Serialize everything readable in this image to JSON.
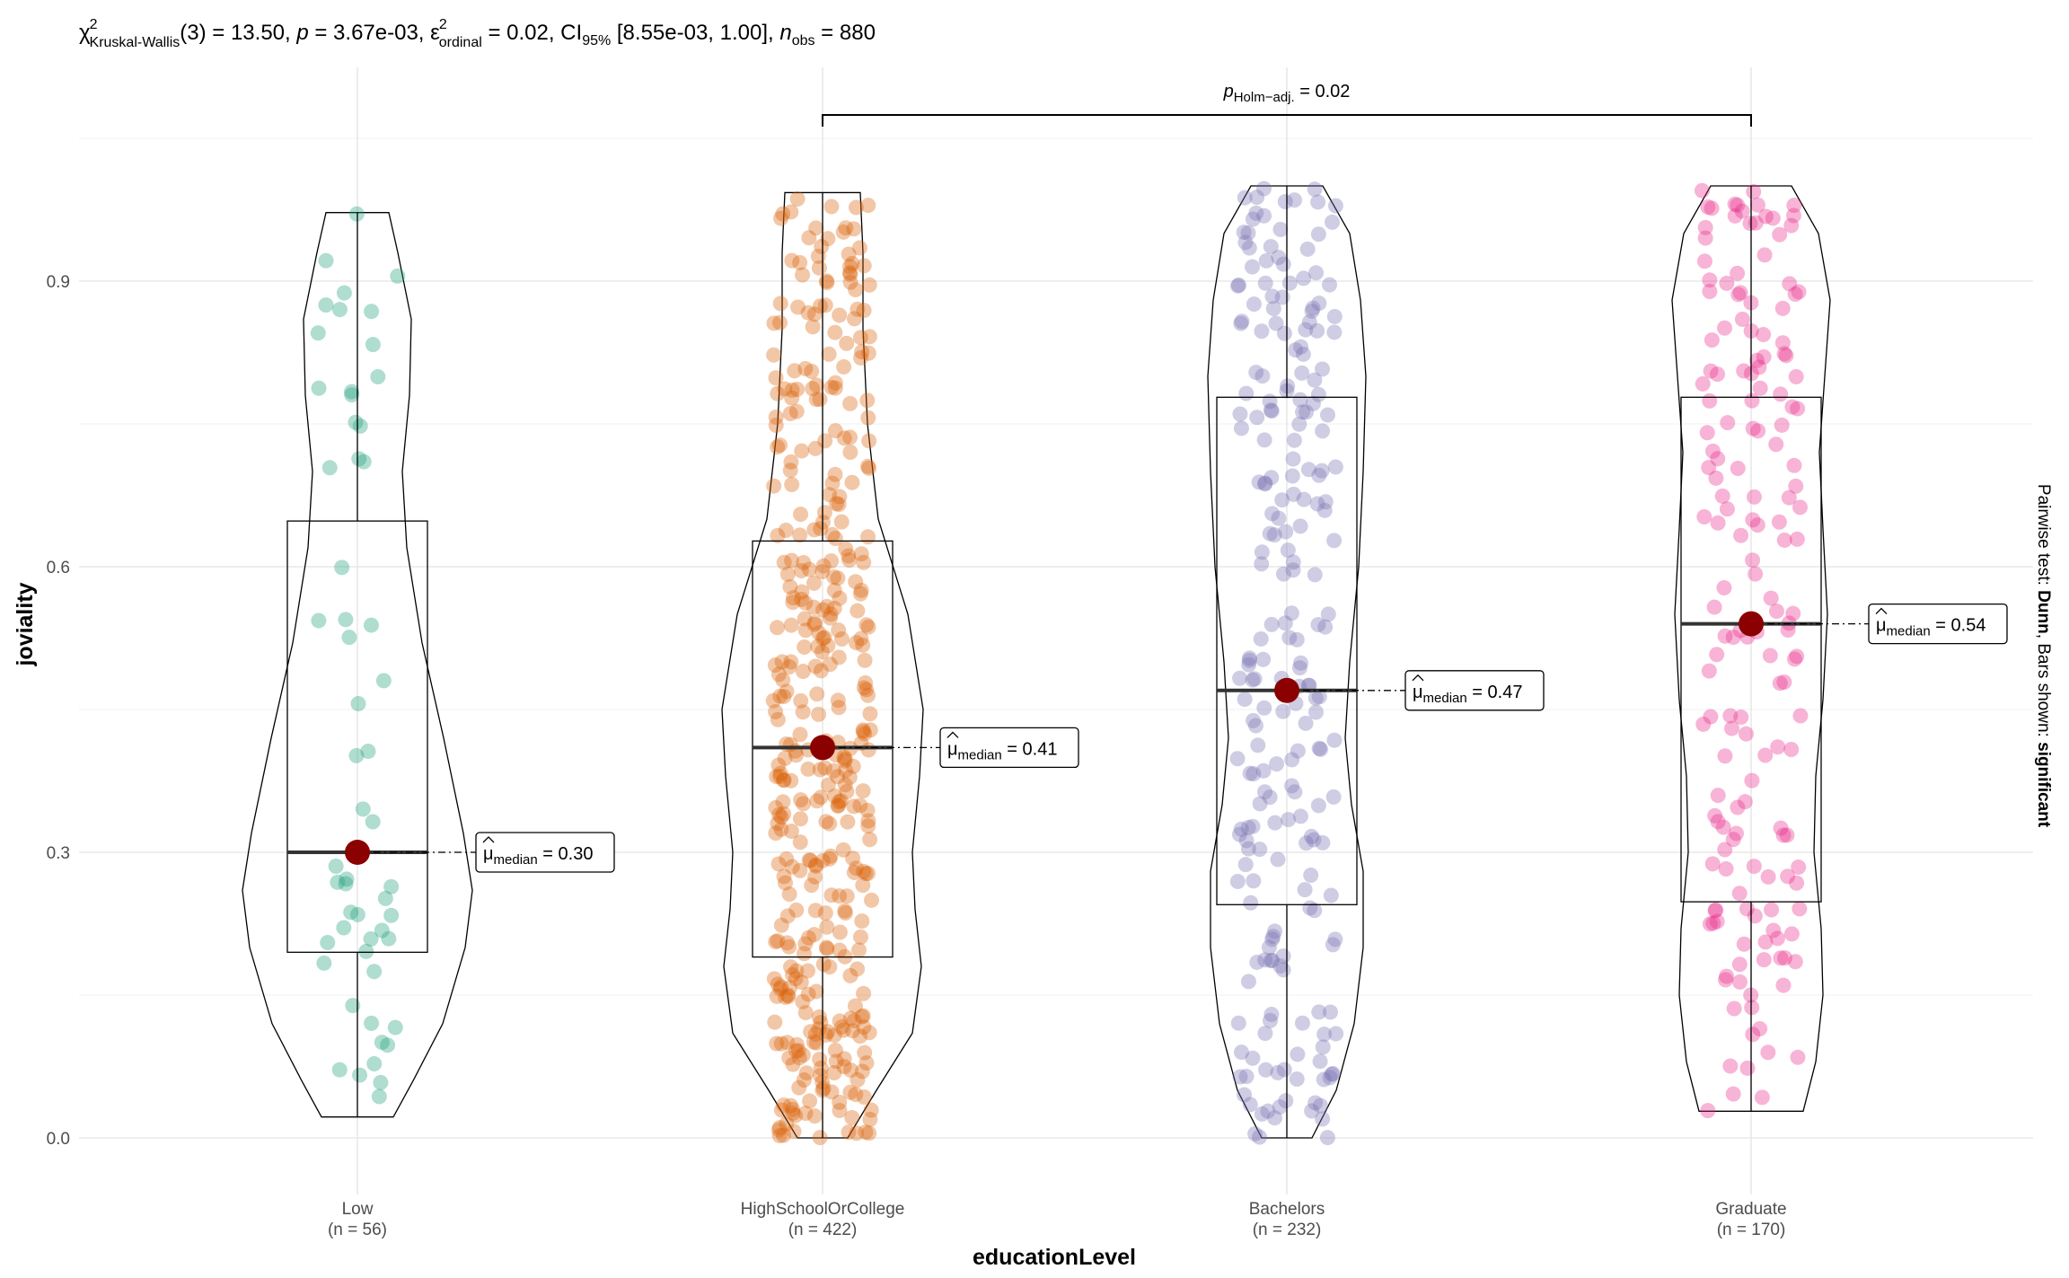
{
  "chart_data": {
    "type": "violin-box-scatter",
    "subtitle": {
      "chi_label": "χ",
      "chi_sup": "2",
      "chi_sub": "Kruskal-Wallis",
      "main": "(3) = 13.50, ",
      "p_label": "p",
      "p_value": " = 3.67e-03, ",
      "eps_label": "ε",
      "eps_sup": "2",
      "eps_sub": "ordinal",
      "eps_value": " = 0.02, CI",
      "ci_sub": "95%",
      "ci_value": " [8.55e-03, 1.00], ",
      "n_label": "n",
      "n_sub": "obs",
      "n_value": " = 880"
    },
    "xlabel": "educationLevel",
    "ylabel": "joviality",
    "ylim": [
      -0.05,
      1.05
    ],
    "yticks": [
      "0.0",
      "0.3",
      "0.6",
      "0.9"
    ],
    "ytick_values": [
      0.0,
      0.3,
      0.6,
      0.9
    ],
    "caption_prefix": "Pairwise test: ",
    "caption_bold1": "Dunn",
    "caption_mid": ", Bars shown: ",
    "caption_bold2": "significant",
    "median_label": "μ",
    "median_sub": "median",
    "pairwise": {
      "from": "HighSchoolOrCollege",
      "to": "Graduate",
      "label": "p",
      "sub": "Holm−adj.",
      "value": " = 0.02"
    },
    "groups": [
      {
        "name": "Low",
        "n_label": "(n = 56)",
        "n": 56,
        "color": "#1B9E77",
        "median": 0.3,
        "median_text": " = 0.30",
        "q1": 0.195,
        "q3": 0.648,
        "min": 0.022,
        "max": 0.972
      },
      {
        "name": "HighSchoolOrCollege",
        "n_label": "(n = 422)",
        "n": 422,
        "color": "#D95F02",
        "median": 0.41,
        "median_text": " = 0.41",
        "q1": 0.19,
        "q3": 0.627,
        "min": 0.0,
        "max": 0.993
      },
      {
        "name": "Bachelors",
        "n_label": "(n = 232)",
        "n": 232,
        "color": "#7570B3",
        "median": 0.47,
        "median_text": " = 0.47",
        "q1": 0.245,
        "q3": 0.778,
        "min": 0.0,
        "max": 1.0
      },
      {
        "name": "Graduate",
        "n_label": "(n = 170)",
        "n": 170,
        "color": "#E7298A",
        "median": 0.54,
        "median_text": " = 0.54",
        "q1": 0.248,
        "q3": 0.778,
        "min": 0.028,
        "max": 1.0
      }
    ],
    "grid": true,
    "point_color": "#8B0000"
  }
}
